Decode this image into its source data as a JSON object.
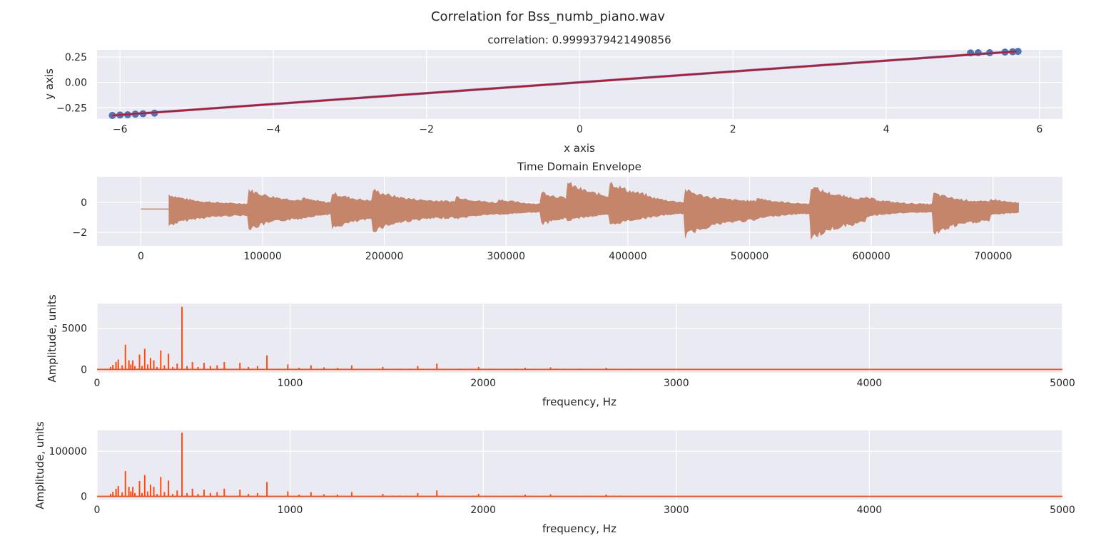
{
  "figure": {
    "suptitle": "Correlation for Bss_numb_piano.wav",
    "colors": {
      "background": "#eaeaf2",
      "grid": "#ffffff",
      "scatter": "#4c72b0",
      "fit": "#e8000b",
      "envelope": "#c4856a",
      "spectrum": "#ff4a0d"
    }
  },
  "chart_data": [
    {
      "type": "scatter",
      "title": "correlation: 0.9999379421490856",
      "xlabel": "x axis",
      "ylabel": "y axis",
      "xlim": [
        -6.3,
        6.3
      ],
      "ylim": [
        -0.36,
        0.32
      ],
      "xticks": [
        -6,
        -4,
        -2,
        0,
        2,
        4,
        6
      ],
      "xtick_labels": [
        "−6",
        "−4",
        "−2",
        "0",
        "2",
        "4",
        "6"
      ],
      "yticks": [
        0.25,
        0.0,
        -0.25
      ],
      "ytick_labels": [
        "0.25",
        "0.00",
        "−0.25"
      ],
      "fit_line": {
        "x": [
          -6.1,
          5.7
        ],
        "y": [
          -0.325,
          0.305
        ]
      },
      "band_halfwidth": 0.012,
      "outliers": [
        {
          "x": -6.1,
          "y": -0.325
        },
        {
          "x": -6.0,
          "y": -0.321
        },
        {
          "x": -5.9,
          "y": -0.318
        },
        {
          "x": -5.8,
          "y": -0.312
        },
        {
          "x": -5.7,
          "y": -0.308
        },
        {
          "x": -5.55,
          "y": -0.302
        },
        {
          "x": 5.1,
          "y": 0.29
        },
        {
          "x": 5.2,
          "y": 0.292
        },
        {
          "x": 5.35,
          "y": 0.292
        },
        {
          "x": 5.55,
          "y": 0.298
        },
        {
          "x": 5.65,
          "y": 0.302
        },
        {
          "x": 5.72,
          "y": 0.305
        }
      ]
    },
    {
      "type": "line",
      "title": "Time Domain Envelope",
      "xlim": [
        -36000,
        757000
      ],
      "ylim": [
        -2.9,
        1.7
      ],
      "xticks": [
        0,
        100000,
        200000,
        300000,
        400000,
        500000,
        600000,
        700000
      ],
      "xtick_labels": [
        "0",
        "100000",
        "200000",
        "300000",
        "400000",
        "500000",
        "600000",
        "700000"
      ],
      "yticks": [
        0,
        -2
      ],
      "ytick_labels": [
        "0",
        "−2"
      ],
      "baseline": -0.45,
      "silence_end": 23000,
      "signal_end": 721000,
      "onsets": [
        {
          "x": 25000,
          "up": 0.55,
          "down": -1.6
        },
        {
          "x": 88000,
          "up": 1.0,
          "down": -2.0
        },
        {
          "x": 133000,
          "up": 0.35,
          "down": -1.1
        },
        {
          "x": 157000,
          "up": 0.75,
          "down": -1.9
        },
        {
          "x": 190000,
          "up": 1.0,
          "down": -2.1
        },
        {
          "x": 258000,
          "up": 0.5,
          "down": -1.2
        },
        {
          "x": 293000,
          "up": 0.3,
          "down": -0.9
        },
        {
          "x": 328000,
          "up": 0.85,
          "down": -1.6
        },
        {
          "x": 350000,
          "up": 1.5,
          "down": -1.3
        },
        {
          "x": 385000,
          "up": 1.55,
          "down": -1.7
        },
        {
          "x": 416000,
          "up": 0.5,
          "down": -1.1
        },
        {
          "x": 446000,
          "up": 1.0,
          "down": -2.5
        },
        {
          "x": 505000,
          "up": 0.4,
          "down": -1.2
        },
        {
          "x": 550000,
          "up": 1.25,
          "down": -2.7
        },
        {
          "x": 596000,
          "up": 0.4,
          "down": -1.0
        },
        {
          "x": 650000,
          "up": 0.75,
          "down": -2.4
        },
        {
          "x": 698000,
          "up": 0.3,
          "down": -0.9
        }
      ]
    },
    {
      "type": "line",
      "title": "",
      "xlabel": "frequency, Hz",
      "ylabel": "Amplitude, units",
      "xlim": [
        0,
        5000
      ],
      "ylim": [
        -400,
        8000
      ],
      "xticks": [
        0,
        1000,
        2000,
        3000,
        4000,
        5000
      ],
      "xtick_labels": [
        "0",
        "1000",
        "2000",
        "3000",
        "4000",
        "5000"
      ],
      "yticks": [
        5000,
        0
      ],
      "ytick_labels": [
        "5000",
        "0"
      ],
      "peaks": [
        {
          "f": 70,
          "a": 300
        },
        {
          "f": 82,
          "a": 550
        },
        {
          "f": 98,
          "a": 900
        },
        {
          "f": 110,
          "a": 1200
        },
        {
          "f": 130,
          "a": 500
        },
        {
          "f": 147,
          "a": 3000
        },
        {
          "f": 165,
          "a": 1100
        },
        {
          "f": 175,
          "a": 600
        },
        {
          "f": 185,
          "a": 1100
        },
        {
          "f": 196,
          "a": 400
        },
        {
          "f": 220,
          "a": 1800
        },
        {
          "f": 233,
          "a": 400
        },
        {
          "f": 247,
          "a": 2500
        },
        {
          "f": 262,
          "a": 600
        },
        {
          "f": 277,
          "a": 1400
        },
        {
          "f": 294,
          "a": 1100
        },
        {
          "f": 311,
          "a": 300
        },
        {
          "f": 330,
          "a": 2300
        },
        {
          "f": 349,
          "a": 500
        },
        {
          "f": 370,
          "a": 1900
        },
        {
          "f": 392,
          "a": 300
        },
        {
          "f": 415,
          "a": 700
        },
        {
          "f": 440,
          "a": 7600
        },
        {
          "f": 466,
          "a": 400
        },
        {
          "f": 494,
          "a": 900
        },
        {
          "f": 523,
          "a": 300
        },
        {
          "f": 554,
          "a": 800
        },
        {
          "f": 587,
          "a": 400
        },
        {
          "f": 622,
          "a": 500
        },
        {
          "f": 659,
          "a": 900
        },
        {
          "f": 740,
          "a": 800
        },
        {
          "f": 784,
          "a": 300
        },
        {
          "f": 831,
          "a": 400
        },
        {
          "f": 880,
          "a": 1700
        },
        {
          "f": 988,
          "a": 600
        },
        {
          "f": 1047,
          "a": 200
        },
        {
          "f": 1108,
          "a": 500
        },
        {
          "f": 1175,
          "a": 250
        },
        {
          "f": 1245,
          "a": 200
        },
        {
          "f": 1319,
          "a": 500
        },
        {
          "f": 1480,
          "a": 300
        },
        {
          "f": 1661,
          "a": 400
        },
        {
          "f": 1760,
          "a": 700
        },
        {
          "f": 1976,
          "a": 300
        },
        {
          "f": 2217,
          "a": 200
        },
        {
          "f": 2349,
          "a": 250
        },
        {
          "f": 2637,
          "a": 200
        }
      ]
    },
    {
      "type": "line",
      "title": "",
      "xlabel": "frequency, Hz",
      "ylabel": "Amplitude, units",
      "xlim": [
        0,
        5000
      ],
      "ylim": [
        -7000,
        146000
      ],
      "xticks": [
        0,
        1000,
        2000,
        3000,
        4000,
        5000
      ],
      "xtick_labels": [
        "0",
        "1000",
        "2000",
        "3000",
        "4000",
        "5000"
      ],
      "yticks": [
        100000,
        0
      ],
      "ytick_labels": [
        "100000",
        "0"
      ],
      "peaks": [
        {
          "f": 70,
          "a": 5500
        },
        {
          "f": 82,
          "a": 10000
        },
        {
          "f": 98,
          "a": 17000
        },
        {
          "f": 110,
          "a": 23000
        },
        {
          "f": 130,
          "a": 9000
        },
        {
          "f": 147,
          "a": 56000
        },
        {
          "f": 165,
          "a": 21000
        },
        {
          "f": 175,
          "a": 11000
        },
        {
          "f": 185,
          "a": 21000
        },
        {
          "f": 196,
          "a": 7500
        },
        {
          "f": 220,
          "a": 34000
        },
        {
          "f": 233,
          "a": 7500
        },
        {
          "f": 247,
          "a": 47000
        },
        {
          "f": 262,
          "a": 11000
        },
        {
          "f": 277,
          "a": 26000
        },
        {
          "f": 294,
          "a": 21000
        },
        {
          "f": 311,
          "a": 5500
        },
        {
          "f": 330,
          "a": 43000
        },
        {
          "f": 349,
          "a": 9500
        },
        {
          "f": 370,
          "a": 35000
        },
        {
          "f": 392,
          "a": 5500
        },
        {
          "f": 415,
          "a": 13000
        },
        {
          "f": 440,
          "a": 141000
        },
        {
          "f": 466,
          "a": 7500
        },
        {
          "f": 494,
          "a": 17000
        },
        {
          "f": 523,
          "a": 5500
        },
        {
          "f": 554,
          "a": 15000
        },
        {
          "f": 587,
          "a": 7500
        },
        {
          "f": 622,
          "a": 9500
        },
        {
          "f": 659,
          "a": 17000
        },
        {
          "f": 740,
          "a": 15000
        },
        {
          "f": 784,
          "a": 5500
        },
        {
          "f": 831,
          "a": 7500
        },
        {
          "f": 880,
          "a": 32000
        },
        {
          "f": 988,
          "a": 11000
        },
        {
          "f": 1047,
          "a": 4000
        },
        {
          "f": 1108,
          "a": 9500
        },
        {
          "f": 1175,
          "a": 4500
        },
        {
          "f": 1245,
          "a": 4000
        },
        {
          "f": 1319,
          "a": 9500
        },
        {
          "f": 1480,
          "a": 5500
        },
        {
          "f": 1661,
          "a": 7500
        },
        {
          "f": 1760,
          "a": 13000
        },
        {
          "f": 1976,
          "a": 5500
        },
        {
          "f": 2217,
          "a": 4000
        },
        {
          "f": 2349,
          "a": 4500
        },
        {
          "f": 2637,
          "a": 4000
        }
      ]
    }
  ]
}
